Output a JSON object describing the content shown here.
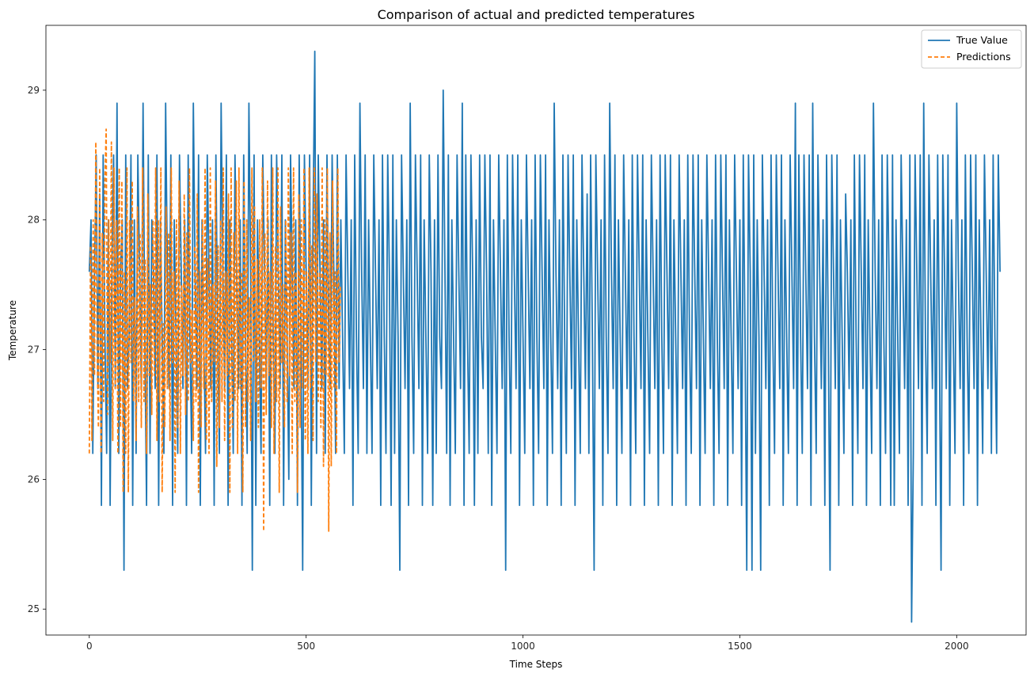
{
  "chart_data": {
    "type": "line",
    "title": "Comparison of actual and predicted temperatures",
    "xlabel": "Time Steps",
    "ylabel": "Temperature",
    "xlim": [
      -100,
      2160
    ],
    "ylim": [
      24.8,
      29.5
    ],
    "x_ticks": [
      0,
      500,
      1000,
      1500,
      2000
    ],
    "y_ticks": [
      25,
      26,
      27,
      28,
      29
    ],
    "grid": false,
    "legend_position": "top-right",
    "series": [
      {
        "name": "True Value",
        "color": "#1f77b4",
        "linestyle": "solid",
        "x_start": 0,
        "x_step": 4,
        "values": [
          27.6,
          28.0,
          26.2,
          27.6,
          28.5,
          26.7,
          28.2,
          25.8,
          28.5,
          27.1,
          26.2,
          28.0,
          25.8,
          27.6,
          28.5,
          26.7,
          28.9,
          26.2,
          27.6,
          28.0,
          25.3,
          28.5,
          26.7,
          27.1,
          28.5,
          25.8,
          28.0,
          26.2,
          28.5,
          27.6,
          26.7,
          28.9,
          27.1,
          25.8,
          28.5,
          26.2,
          28.0,
          27.6,
          26.7,
          28.5,
          25.8,
          28.0,
          27.1,
          26.2,
          28.9,
          27.6,
          26.7,
          28.5,
          25.8,
          28.0,
          27.1,
          26.2,
          28.5,
          27.6,
          26.7,
          28.0,
          25.8,
          28.5,
          27.1,
          26.2,
          28.9,
          27.6,
          26.7,
          28.5,
          25.8,
          28.0,
          27.1,
          26.2,
          28.5,
          27.6,
          26.7,
          28.0,
          25.8,
          28.5,
          27.1,
          26.2,
          28.9,
          27.6,
          26.7,
          28.5,
          25.8,
          28.0,
          27.1,
          26.2,
          28.5,
          27.6,
          26.7,
          28.0,
          25.8,
          28.5,
          27.1,
          26.2,
          28.9,
          27.6,
          25.3,
          28.5,
          25.8,
          28.0,
          27.1,
          26.2,
          28.5,
          27.6,
          26.7,
          28.0,
          25.8,
          28.5,
          27.1,
          26.2,
          28.5,
          27.6,
          26.7,
          28.5,
          25.8,
          28.0,
          27.1,
          26.0,
          28.5,
          27.6,
          26.7,
          28.0,
          25.8,
          28.5,
          27.1,
          25.3,
          28.5,
          27.6,
          26.7,
          28.5,
          25.8,
          28.0,
          29.3,
          26.2,
          28.5,
          27.6,
          26.7,
          28.0,
          26.2,
          28.5,
          27.1,
          26.7,
          28.5,
          27.6,
          26.2,
          28.5,
          26.7,
          28.0,
          27.1,
          26.2,
          28.5,
          27.6,
          26.7,
          28.0,
          25.8,
          28.5,
          27.1,
          26.2,
          28.9,
          27.6,
          26.7,
          28.5,
          26.2,
          28.0,
          27.1,
          26.2,
          28.5,
          27.6,
          26.7,
          28.0,
          25.8,
          28.5,
          27.1,
          26.2,
          28.5,
          27.6,
          25.8,
          28.5,
          26.2,
          28.0,
          27.1,
          25.3,
          28.5,
          27.6,
          26.7,
          28.0,
          25.8,
          28.9,
          27.1,
          26.2,
          28.5,
          27.6,
          26.7,
          28.5,
          25.8,
          28.0,
          27.1,
          26.2,
          28.5,
          27.6,
          25.8,
          28.0,
          26.2,
          28.5,
          27.1,
          26.7,
          29.0,
          27.6,
          26.2,
          28.5,
          25.8,
          28.0,
          27.1,
          26.2,
          28.5,
          27.6,
          26.7,
          28.9,
          25.8,
          28.5,
          27.1,
          26.2,
          28.5,
          27.6,
          25.8,
          28.0,
          26.2,
          28.5,
          27.1,
          26.7,
          28.5,
          27.6,
          26.2,
          28.5,
          25.8,
          28.0,
          27.1,
          26.2,
          28.5,
          27.6,
          26.7,
          28.0,
          25.3,
          28.5,
          27.1,
          26.2,
          28.5,
          27.6,
          26.7,
          28.5,
          25.8,
          28.0,
          27.1,
          26.2,
          28.5,
          27.6,
          26.7,
          28.0,
          25.8,
          28.5,
          27.1,
          26.2,
          28.5,
          27.6,
          26.7,
          28.5,
          25.8,
          28.0,
          27.1,
          26.2,
          28.9,
          27.6,
          26.7,
          28.0,
          25.8,
          28.5,
          27.1,
          26.2,
          28.5,
          27.6,
          26.7,
          28.5,
          25.8,
          28.0,
          27.1,
          26.2,
          28.5,
          27.6,
          26.7,
          28.2,
          26.2,
          28.5,
          27.1,
          25.3,
          28.5,
          27.6,
          26.7,
          28.0,
          25.8,
          28.5,
          27.1,
          26.2,
          28.9,
          27.6,
          26.7,
          28.5,
          25.8,
          28.0,
          27.1,
          26.2,
          28.5,
          27.6,
          26.7,
          28.0,
          25.8,
          28.5,
          27.1,
          26.2,
          28.5,
          27.6,
          26.7,
          28.5,
          25.8,
          28.0,
          27.1,
          26.2,
          28.5,
          27.6,
          26.7,
          28.0,
          25.8,
          28.5,
          27.1,
          26.2,
          28.5,
          27.6,
          26.7,
          28.5,
          25.8,
          28.0,
          27.1,
          26.2,
          28.5,
          27.6,
          26.7,
          28.0,
          25.8,
          28.5,
          27.1,
          26.2,
          28.5,
          27.6,
          26.7,
          28.5,
          25.8,
          28.0,
          27.1,
          26.2,
          28.5,
          27.6,
          26.7,
          28.0,
          25.8,
          28.5,
          27.1,
          26.2,
          28.5,
          27.6,
          26.7,
          28.5,
          25.8,
          28.0,
          27.1,
          26.2,
          28.5,
          27.6,
          26.7,
          28.0,
          25.8,
          28.5,
          27.1,
          25.3,
          28.5,
          27.6,
          25.3,
          28.5,
          26.2,
          28.0,
          27.1,
          25.3,
          28.5,
          27.6,
          26.7,
          28.0,
          25.8,
          28.5,
          27.1,
          26.2,
          28.5,
          27.6,
          26.7,
          28.5,
          25.8,
          28.0,
          27.1,
          26.2,
          28.5,
          27.6,
          26.7,
          28.9,
          25.8,
          28.5,
          27.1,
          26.2,
          28.5,
          27.6,
          26.7,
          28.5,
          25.8,
          28.9,
          27.1,
          26.2,
          28.5,
          27.6,
          26.7,
          28.0,
          25.8,
          28.5,
          27.1,
          25.3,
          28.5,
          27.6,
          26.7,
          28.5,
          25.8,
          28.0,
          27.1,
          26.2,
          28.2,
          27.6,
          26.7,
          28.0,
          25.8,
          28.5,
          27.1,
          26.2,
          28.5,
          27.6,
          26.7,
          28.5,
          25.8,
          28.0,
          27.1,
          26.2,
          28.9,
          27.6,
          26.7,
          28.0,
          25.8,
          28.5,
          27.1,
          26.2,
          28.5,
          27.6,
          25.8,
          28.5,
          25.8,
          28.0,
          27.1,
          26.2,
          28.5,
          27.6,
          26.7,
          28.0,
          25.8,
          28.5,
          24.9,
          26.2,
          28.5,
          27.6,
          26.7,
          28.5,
          25.8,
          28.9,
          27.1,
          26.2,
          28.5,
          27.6,
          26.7,
          28.0,
          25.8,
          28.5,
          27.1,
          25.3,
          28.5,
          27.6,
          26.7,
          28.5,
          25.8,
          28.0,
          27.1,
          26.2,
          28.9,
          27.6,
          26.7,
          28.0,
          25.8,
          28.5,
          27.1,
          26.2,
          28.5,
          27.6,
          26.7,
          28.5,
          25.8,
          28.0,
          27.1,
          26.2,
          28.5,
          27.6,
          26.7,
          28.0,
          26.2,
          28.5,
          27.1,
          26.2,
          28.5,
          27.6
        ]
      },
      {
        "name": "Predictions",
        "color": "#ff7f0e",
        "linestyle": "dashed",
        "x_start": 0,
        "x_step": 3,
        "values": [
          26.2,
          27.8,
          26.3,
          28.0,
          26.8,
          28.6,
          27.0,
          26.4,
          28.4,
          26.2,
          27.9,
          26.6,
          28.3,
          28.7,
          26.5,
          28.0,
          26.9,
          28.6,
          26.3,
          28.4,
          26.7,
          28.0,
          26.2,
          28.4,
          26.4,
          28.3,
          25.9,
          27.6,
          26.2,
          28.4,
          25.9,
          28.0,
          26.9,
          28.3,
          26.6,
          27.4,
          26.3,
          28.1,
          26.6,
          27.9,
          26.4,
          28.4,
          26.6,
          27.7,
          26.2,
          28.2,
          26.8,
          27.5,
          26.5,
          28.0,
          26.8,
          28.4,
          26.3,
          28.0,
          26.6,
          28.4,
          25.9,
          27.2,
          26.4,
          28.1,
          26.7,
          27.9,
          26.3,
          28.4,
          26.9,
          27.6,
          25.9,
          28.0,
          26.4,
          28.3,
          26.2,
          27.5,
          26.8,
          28.2,
          26.5,
          27.9,
          26.6,
          28.4,
          26.9,
          27.3,
          26.3,
          27.8,
          26.6,
          28.2,
          25.9,
          27.6,
          26.4,
          28.0,
          26.7,
          28.4,
          26.3,
          27.7,
          26.2,
          28.4,
          26.6,
          27.5,
          26.9,
          28.3,
          26.1,
          27.8,
          26.4,
          28.0,
          26.6,
          28.4,
          26.3,
          27.6,
          26.8,
          28.2,
          25.9,
          28.4,
          26.4,
          27.9,
          26.6,
          28.3,
          26.2,
          28.4,
          26.7,
          27.6,
          25.9,
          28.3,
          26.4,
          28.0,
          26.6,
          27.4,
          26.3,
          28.4,
          26.9,
          28.1,
          26.6,
          27.7,
          26.4,
          28.0,
          26.7,
          28.4,
          25.6,
          27.9,
          26.5,
          28.3,
          26.8,
          27.6,
          26.4,
          28.4,
          26.2,
          27.8,
          26.6,
          28.4,
          25.9,
          28.1,
          26.9,
          27.5,
          26.4,
          28.0,
          26.6,
          28.4,
          26.8,
          27.9,
          26.2,
          28.4,
          26.6,
          27.6,
          25.9,
          28.2,
          26.4,
          28.0,
          26.7,
          28.4,
          26.3,
          27.6,
          26.2,
          28.4,
          26.7,
          27.8,
          26.3,
          28.4,
          26.9,
          28.2,
          26.6,
          27.6,
          26.4,
          28.4,
          26.1,
          28.0,
          26.8,
          28.4,
          25.6,
          27.9,
          26.1,
          28.3,
          26.7,
          27.6,
          26.2,
          28.4,
          26.9,
          27.5
        ]
      }
    ]
  }
}
